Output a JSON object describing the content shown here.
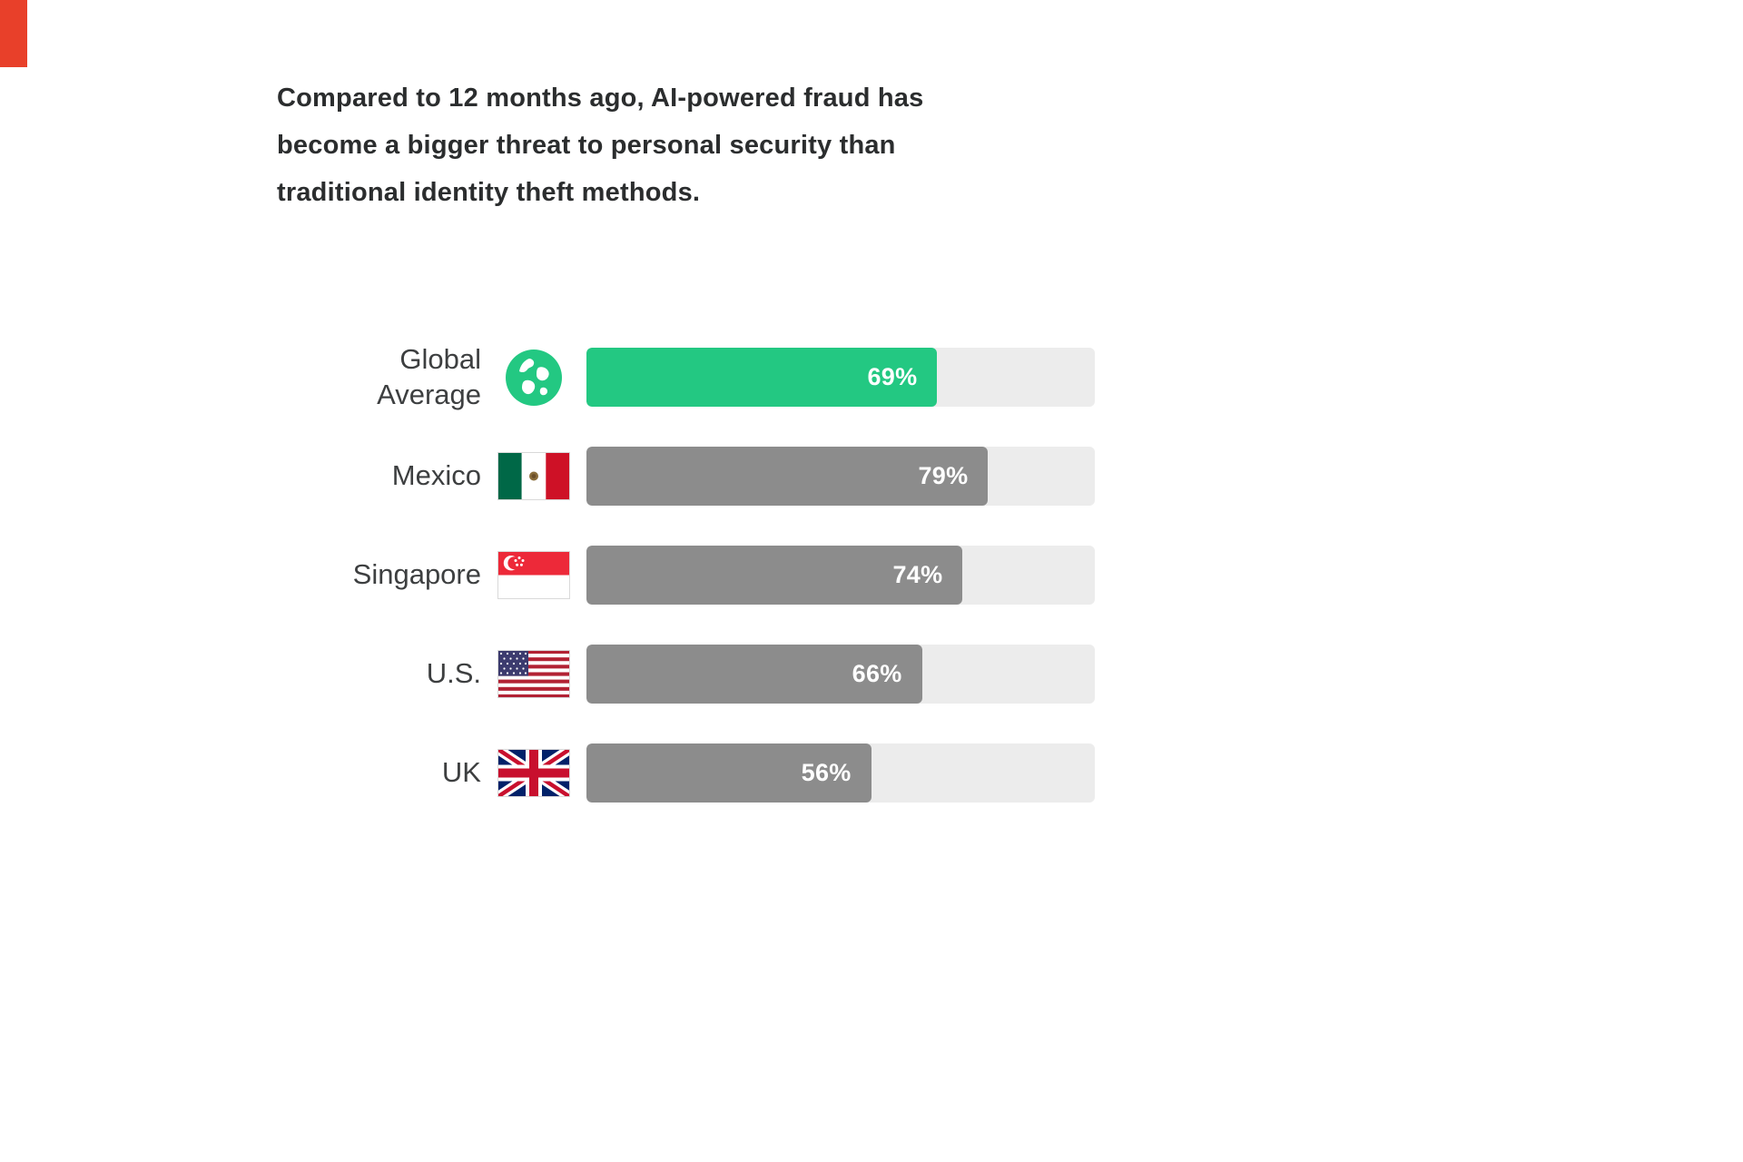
{
  "headline": {
    "title_lines": [
      "Compared to 12 months ago, AI-powered fraud has",
      "become a bigger threat to personal security than",
      "traditional identity theft methods."
    ]
  },
  "colors": {
    "highlight_bar": "#23C882",
    "default_bar": "#8C8C8C",
    "track": "#ECECEC",
    "corner_mark": "#E8402A",
    "headline_text": "#2B2D2E",
    "label_text": "#3D3F40",
    "value_text": "#FFFFFF"
  },
  "chart_data": {
    "type": "bar",
    "orientation": "horizontal",
    "title": "Compared to 12 months ago, AI-powered fraud has become a bigger threat to personal security than traditional identity theft methods.",
    "xlabel": "",
    "ylabel": "",
    "unit": "%",
    "xlim": [
      0,
      100
    ],
    "grid": false,
    "legend": false,
    "categories": [
      "Global Average",
      "Mexico",
      "Singapore",
      "U.S.",
      "UK"
    ],
    "values": [
      69,
      79,
      74,
      66,
      56
    ],
    "rows": [
      {
        "label": "Global Average",
        "icon": "globe-icon",
        "value": 69,
        "display": "69%",
        "highlight": true
      },
      {
        "label": "Mexico",
        "icon": "flag-mexico-icon",
        "value": 79,
        "display": "79%",
        "highlight": false
      },
      {
        "label": "Singapore",
        "icon": "flag-singapore-icon",
        "value": 74,
        "display": "74%",
        "highlight": false
      },
      {
        "label": "U.S.",
        "icon": "flag-us-icon",
        "value": 66,
        "display": "66%",
        "highlight": false
      },
      {
        "label": "UK",
        "icon": "flag-uk-icon",
        "value": 56,
        "display": "56%",
        "highlight": false
      }
    ]
  }
}
